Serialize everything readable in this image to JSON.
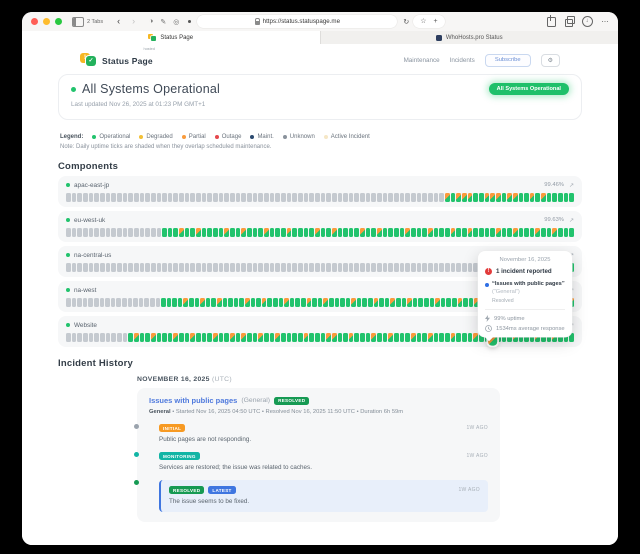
{
  "icons": {
    "back": "‹",
    "forward": "›",
    "contrast": "◑",
    "compose": "✎",
    "extensions": "◎",
    "reload": "↻",
    "star": "☆",
    "new_tab": "+",
    "download_arrow": "↓",
    "more": "⋯",
    "gear": "⚙",
    "external": "↗",
    "check": "✓",
    "alert": "!"
  },
  "browser": {
    "tabs_count_label": "2 Tabs",
    "url": "https://status.statuspage.me",
    "tabs": [
      {
        "title": "Status Page"
      },
      {
        "title": "WhoHosts.pro Status"
      }
    ]
  },
  "header": {
    "brand": "Status Page",
    "brand_tag": "hosted",
    "nav_maintenance": "Maintenance",
    "nav_incidents": "Incidents",
    "subscribe_label": "Subscribe"
  },
  "hero": {
    "title": "All Systems Operational",
    "updated": "Last updated Nov 26, 2025 at 01:23 PM GMT+1",
    "badge": "All Systems Operational"
  },
  "legend": {
    "label": "Legend:",
    "items": [
      {
        "label": "Operational",
        "color": "#22c36d"
      },
      {
        "label": "Degraded",
        "color": "#f2c037"
      },
      {
        "label": "Partial",
        "color": "#f99b3d"
      },
      {
        "label": "Outage",
        "color": "#e5484d"
      },
      {
        "label": "Maint.",
        "color": "#2b4a6f"
      },
      {
        "label": "Unknown",
        "color": "#8a929c"
      },
      {
        "label": "Active Incident",
        "color": "#f6e7c6"
      }
    ],
    "note": "Note: Daily uptime ticks are shaded when they overlap scheduled maintenance."
  },
  "components": {
    "title": "Components",
    "rows": [
      {
        "name": "apac-east-jp",
        "uptime": "99.46%",
        "ticks": "uuuuuuuuuuuuuuuuuuuuuuuuuuuuuuuuuuuuuuuuuuuuuuuuuuuuuuuuuuuuuuuuuuupopppoopppoppoopopooooo"
      },
      {
        "name": "eu-west-uk",
        "uptime": "99.63%",
        "ticks": "uuuuuuuuuuuuuuuuuooopoopoooopoopooopooopoooopoopoooopoopoooopooopooopoopoooopoopooopoopooo"
      },
      {
        "name": "na-central-us",
        "uptime": "",
        "ticks": "uuuuuuuuuuuuuuuuuuuuuuuuuuuuuuuuuuuuuuuuuuuuuuuuuuuuuuuuuuuuuuuuuuuuuuuuuuuuuuuuuuuuuuuuoo"
      },
      {
        "name": "na-west",
        "uptime": "",
        "ticks": "uuuuuuuuuuuuuuuuuoooopoopoopoooopoopooopooopoopoooopooopoopoopoooopooopoopoooopoopooopoooop"
      },
      {
        "name": "Website",
        "uptime": "",
        "ticks": "uuuuuuuuuuuopoopooopoopooopoopopoopoopoooopoooppoopooopoopooopoopooopooopoohpoopooopoopooo"
      }
    ]
  },
  "tooltip": {
    "date": "November 16, 2025",
    "incidents_line": "1 incident reported",
    "incident_title": "“Issues with public pages”",
    "incident_scope": "(“General”)",
    "incident_state": "Resolved",
    "uptime_line": "99% uptime",
    "response_line": "1534ms average response"
  },
  "history": {
    "title": "Incident History",
    "date_label": "NOVEMBER 16, 2025",
    "date_suffix": "(UTC)",
    "incident": {
      "title": "Issues with public pages",
      "scope": "(General)",
      "status": "RESOLVED",
      "meta_prefix": "General",
      "meta": " • Started Nov 16, 2025 04:50 UTC • Resolved Nov 16, 2025 11:50 UTC • Duration 6h 59m",
      "updates": [
        {
          "badge": "INITIAL",
          "time": "1W AGO",
          "text": "Public pages are not responding."
        },
        {
          "badge": "MONITORING",
          "time": "1W AGO",
          "text": "Services are restored; the issue was related to caches."
        },
        {
          "badge": "RESOLVED",
          "badge_latest": "LATEST",
          "time": "1W AGO",
          "text": "The issue seems to be fixed."
        }
      ]
    }
  }
}
